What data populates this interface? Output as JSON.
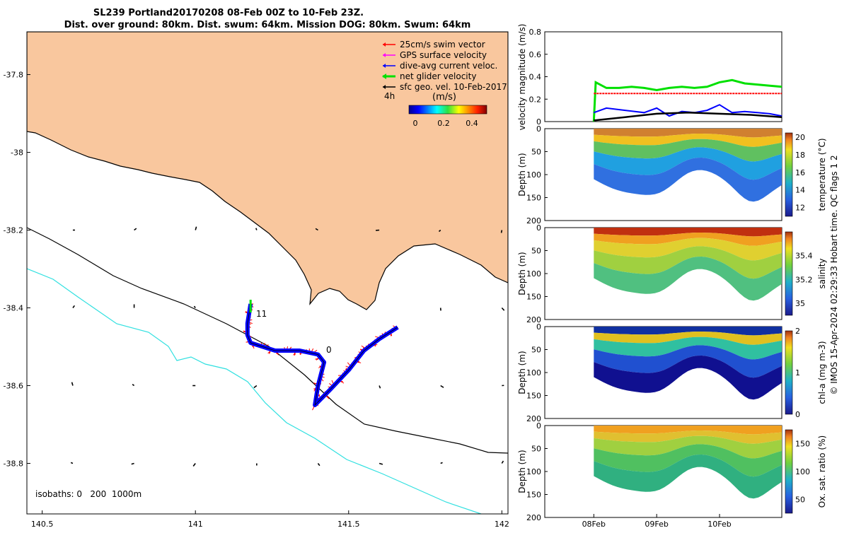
{
  "title_line1": "SL239 Portland20170208 08-Feb 00Z to 10-Feb 23Z.",
  "title_line2": "Dist. over ground: 80km. Dist. swum: 64km. Mission DOG: 80km. Swum: 64km",
  "credit": "© IMOS 15-Apr-2024 02:29:33 Hobart time. QC flags 1  2",
  "colors": {
    "land": "#f9c79e",
    "glider": "#0000ff",
    "swim": "#ff0000",
    "net": "#00e000",
    "iso1000": "#30e0e0"
  },
  "chart_data": [
    {
      "type": "map",
      "xlim": [
        140.45,
        142.02
      ],
      "ylim": [
        -38.93,
        -37.69
      ],
      "x_ticks": [
        "140.5",
        "141",
        "141.5",
        "142"
      ],
      "y_ticks": [
        "-37.8",
        "-38",
        "-38.2",
        "-38.4",
        "-38.6",
        "-38.8"
      ],
      "legend": [
        {
          "label": "25cm/s swim vector",
          "color": "#ff0000"
        },
        {
          "label": "GPS surface velocity",
          "color": "#ff00ff"
        },
        {
          "label": "dive-avg current veloc.",
          "color": "#0000ff"
        },
        {
          "label": "net glider velocity",
          "color": "#00e000"
        },
        {
          "label": "sfc geo. vel. 10-Feb-2017",
          "color": "#000000"
        }
      ],
      "colorbar": {
        "title": "(m/s)",
        "ticks": [
          "0",
          "0.2",
          "0.4"
        ],
        "range": [
          0,
          0.5
        ]
      },
      "annotations": [
        "4h",
        "11",
        "0",
        "isobaths: 0   200  1000m"
      ],
      "track": [
        [
          141.18,
          -38.39
        ],
        [
          141.17,
          -38.44
        ],
        [
          141.17,
          -38.47
        ],
        [
          141.18,
          -38.49
        ],
        [
          141.26,
          -38.51
        ],
        [
          141.34,
          -38.51
        ],
        [
          141.4,
          -38.52
        ],
        [
          141.42,
          -38.54
        ],
        [
          141.4,
          -38.6
        ],
        [
          141.39,
          -38.65
        ],
        [
          141.44,
          -38.61
        ],
        [
          141.5,
          -38.56
        ],
        [
          141.55,
          -38.51
        ],
        [
          141.6,
          -38.48
        ],
        [
          141.66,
          -38.45
        ]
      ]
    },
    {
      "type": "line",
      "ylabel": "velocity magnitude (m/s)",
      "ylim": [
        0,
        0.8
      ],
      "y_ticks": [
        "0",
        "0.2",
        "0.4",
        "0.6",
        "0.8"
      ],
      "x_ticks": [
        "08Feb",
        "09Feb",
        "10Feb"
      ],
      "xlim_days": [
        -0.78,
        2.99
      ],
      "series": [
        {
          "color": "#00e000",
          "x": [
            0,
            0.03,
            0.2,
            0.4,
            0.6,
            0.8,
            1.0,
            1.2,
            1.4,
            1.6,
            1.8,
            2.0,
            2.2,
            2.4,
            2.6,
            2.8,
            2.99
          ],
          "y": [
            0,
            0.35,
            0.3,
            0.3,
            0.31,
            0.3,
            0.28,
            0.3,
            0.31,
            0.3,
            0.31,
            0.35,
            0.37,
            0.34,
            0.33,
            0.32,
            0.31
          ]
        },
        {
          "color": "#ff0000",
          "x": [
            0,
            0.1,
            0.5,
            1.0,
            1.5,
            2.0,
            2.5,
            2.99
          ],
          "y": [
            0.25,
            0.25,
            0.25,
            0.25,
            0.25,
            0.25,
            0.25,
            0.25
          ]
        },
        {
          "color": "#0000ff",
          "x": [
            0,
            0.2,
            0.5,
            0.8,
            1.0,
            1.2,
            1.4,
            1.6,
            1.8,
            2.0,
            2.2,
            2.4,
            2.6,
            2.8,
            2.99
          ],
          "y": [
            0.08,
            0.12,
            0.1,
            0.08,
            0.12,
            0.05,
            0.09,
            0.08,
            0.1,
            0.15,
            0.08,
            0.09,
            0.08,
            0.07,
            0.05
          ]
        },
        {
          "color": "#000000",
          "x": [
            0,
            0.5,
            1.0,
            1.5,
            2.0,
            2.5,
            2.99
          ],
          "y": [
            0.01,
            0.04,
            0.07,
            0.08,
            0.07,
            0.06,
            0.04
          ]
        }
      ]
    },
    {
      "type": "heatmap",
      "variable": "temperature (°C)",
      "ylabel": "Depth (m)",
      "y_ticks": [
        "0",
        "50",
        "100",
        "150",
        "200"
      ],
      "colorbar_ticks": [
        "12",
        "14",
        "16",
        "18",
        "20"
      ],
      "range": [
        11,
        20.5
      ]
    },
    {
      "type": "heatmap",
      "variable": "salinity",
      "ylabel": "Depth (m)",
      "y_ticks": [
        "0",
        "50",
        "100",
        "150",
        "200"
      ],
      "colorbar_ticks": [
        "35",
        "35.2",
        "35.4"
      ],
      "range": [
        34.9,
        35.6
      ]
    },
    {
      "type": "heatmap",
      "variable": "chl-a (mg m-3)",
      "ylabel": "Depth (m)",
      "y_ticks": [
        "0",
        "50",
        "100",
        "150",
        "200"
      ],
      "colorbar_ticks": [
        "0",
        "1",
        "2"
      ],
      "range": [
        0,
        2
      ]
    },
    {
      "type": "heatmap",
      "variable": "Ox. sat. ratio (%)",
      "ylabel": "Depth (m)",
      "y_ticks": [
        "0",
        "50",
        "100",
        "150",
        "200"
      ],
      "colorbar_ticks": [
        "50",
        "100",
        "150"
      ],
      "range": [
        25,
        175
      ]
    }
  ]
}
